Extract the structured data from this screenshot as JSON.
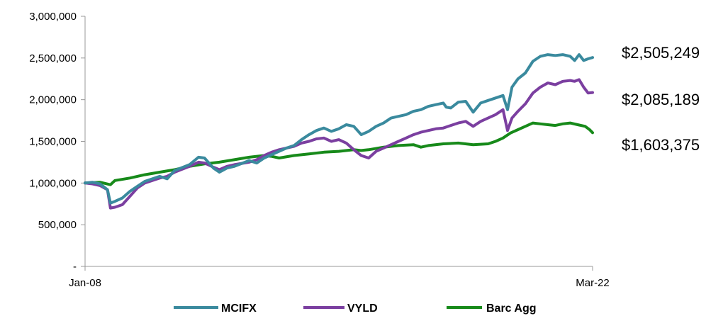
{
  "chart_data": {
    "type": "line",
    "x_start_label": "Jan-08",
    "x_end_label": "Mar-22",
    "x_tick_labels": [
      "Jan-08",
      "Mar-22"
    ],
    "y_ticks": [
      0,
      500000,
      1000000,
      1500000,
      2000000,
      2500000,
      3000000
    ],
    "y_tick_labels": [
      "-",
      "500,000",
      "1,000,000",
      "1,500,000",
      "2,000,000",
      "2,500,000",
      "3,000,000"
    ],
    "ylim": [
      0,
      3000000
    ],
    "grid": false,
    "legend_position": "bottom",
    "series": [
      {
        "name": "MCIFX",
        "color": "#3a8a9e",
        "end_label": "$2,505,249",
        "points": [
          [
            2008.0,
            1000000
          ],
          [
            2008.25,
            1010000
          ],
          [
            2008.5,
            990000
          ],
          [
            2008.75,
            920000
          ],
          [
            2008.85,
            760000
          ],
          [
            2009.0,
            780000
          ],
          [
            2009.25,
            820000
          ],
          [
            2009.5,
            900000
          ],
          [
            2009.75,
            960000
          ],
          [
            2010.0,
            1020000
          ],
          [
            2010.5,
            1080000
          ],
          [
            2010.75,
            1050000
          ],
          [
            2011.0,
            1150000
          ],
          [
            2011.5,
            1220000
          ],
          [
            2011.8,
            1310000
          ],
          [
            2012.0,
            1300000
          ],
          [
            2012.3,
            1180000
          ],
          [
            2012.5,
            1130000
          ],
          [
            2012.75,
            1180000
          ],
          [
            2013.0,
            1200000
          ],
          [
            2013.5,
            1270000
          ],
          [
            2013.75,
            1240000
          ],
          [
            2014.0,
            1300000
          ],
          [
            2014.25,
            1340000
          ],
          [
            2014.5,
            1380000
          ],
          [
            2014.75,
            1420000
          ],
          [
            2015.0,
            1450000
          ],
          [
            2015.25,
            1520000
          ],
          [
            2015.5,
            1580000
          ],
          [
            2015.75,
            1630000
          ],
          [
            2016.0,
            1660000
          ],
          [
            2016.25,
            1620000
          ],
          [
            2016.5,
            1650000
          ],
          [
            2016.75,
            1700000
          ],
          [
            2017.0,
            1680000
          ],
          [
            2017.25,
            1580000
          ],
          [
            2017.5,
            1620000
          ],
          [
            2017.75,
            1680000
          ],
          [
            2018.0,
            1720000
          ],
          [
            2018.25,
            1780000
          ],
          [
            2018.5,
            1800000
          ],
          [
            2018.75,
            1820000
          ],
          [
            2019.0,
            1860000
          ],
          [
            2019.25,
            1880000
          ],
          [
            2019.5,
            1920000
          ],
          [
            2019.75,
            1940000
          ],
          [
            2020.0,
            1960000
          ],
          [
            2020.1,
            1910000
          ],
          [
            2020.25,
            1900000
          ],
          [
            2020.5,
            1970000
          ],
          [
            2020.75,
            1980000
          ],
          [
            2021.0,
            1850000
          ],
          [
            2021.25,
            1960000
          ],
          [
            2021.5,
            1990000
          ],
          [
            2021.75,
            2020000
          ],
          [
            2022.0,
            2050000
          ],
          [
            2022.15,
            1880000
          ],
          [
            2022.3,
            2150000
          ],
          [
            2022.5,
            2250000
          ],
          [
            2022.75,
            2320000
          ],
          [
            2023.0,
            2460000
          ],
          [
            2023.25,
            2520000
          ],
          [
            2023.5,
            2540000
          ],
          [
            2023.75,
            2530000
          ],
          [
            2024.0,
            2540000
          ],
          [
            2024.25,
            2520000
          ],
          [
            2024.4,
            2470000
          ],
          [
            2024.55,
            2540000
          ],
          [
            2024.7,
            2470000
          ],
          [
            2024.85,
            2490000
          ],
          [
            2025.0,
            2505249
          ]
        ]
      },
      {
        "name": "VYLD",
        "color": "#7b3fa0",
        "end_label": "$2,085,189",
        "points": [
          [
            2008.0,
            1000000
          ],
          [
            2008.25,
            990000
          ],
          [
            2008.5,
            970000
          ],
          [
            2008.75,
            920000
          ],
          [
            2008.85,
            700000
          ],
          [
            2009.0,
            710000
          ],
          [
            2009.25,
            740000
          ],
          [
            2009.5,
            840000
          ],
          [
            2009.75,
            940000
          ],
          [
            2010.0,
            1000000
          ],
          [
            2010.5,
            1060000
          ],
          [
            2010.75,
            1080000
          ],
          [
            2011.0,
            1130000
          ],
          [
            2011.5,
            1200000
          ],
          [
            2011.8,
            1250000
          ],
          [
            2012.0,
            1240000
          ],
          [
            2012.3,
            1190000
          ],
          [
            2012.5,
            1160000
          ],
          [
            2012.75,
            1200000
          ],
          [
            2013.0,
            1220000
          ],
          [
            2013.5,
            1250000
          ],
          [
            2013.75,
            1280000
          ],
          [
            2014.0,
            1330000
          ],
          [
            2014.25,
            1370000
          ],
          [
            2014.5,
            1400000
          ],
          [
            2014.75,
            1420000
          ],
          [
            2015.0,
            1440000
          ],
          [
            2015.25,
            1480000
          ],
          [
            2015.5,
            1500000
          ],
          [
            2015.75,
            1530000
          ],
          [
            2016.0,
            1540000
          ],
          [
            2016.25,
            1500000
          ],
          [
            2016.5,
            1520000
          ],
          [
            2016.75,
            1480000
          ],
          [
            2017.0,
            1400000
          ],
          [
            2017.25,
            1330000
          ],
          [
            2017.5,
            1300000
          ],
          [
            2017.75,
            1380000
          ],
          [
            2018.0,
            1420000
          ],
          [
            2018.25,
            1460000
          ],
          [
            2018.5,
            1500000
          ],
          [
            2018.75,
            1540000
          ],
          [
            2019.0,
            1580000
          ],
          [
            2019.25,
            1610000
          ],
          [
            2019.5,
            1630000
          ],
          [
            2019.75,
            1650000
          ],
          [
            2020.0,
            1660000
          ],
          [
            2020.25,
            1690000
          ],
          [
            2020.5,
            1720000
          ],
          [
            2020.75,
            1740000
          ],
          [
            2021.0,
            1680000
          ],
          [
            2021.25,
            1740000
          ],
          [
            2021.5,
            1780000
          ],
          [
            2021.75,
            1820000
          ],
          [
            2022.0,
            1880000
          ],
          [
            2022.15,
            1630000
          ],
          [
            2022.3,
            1780000
          ],
          [
            2022.5,
            1860000
          ],
          [
            2022.75,
            1950000
          ],
          [
            2023.0,
            2080000
          ],
          [
            2023.25,
            2150000
          ],
          [
            2023.5,
            2200000
          ],
          [
            2023.75,
            2180000
          ],
          [
            2024.0,
            2220000
          ],
          [
            2024.25,
            2230000
          ],
          [
            2024.4,
            2220000
          ],
          [
            2024.55,
            2240000
          ],
          [
            2024.7,
            2150000
          ],
          [
            2024.85,
            2080000
          ],
          [
            2025.0,
            2085189
          ]
        ]
      },
      {
        "name": "Barc Agg",
        "color": "#178a1a",
        "end_label": "$1,603,375",
        "points": [
          [
            2008.0,
            1000000
          ],
          [
            2008.5,
            1010000
          ],
          [
            2008.85,
            980000
          ],
          [
            2009.0,
            1030000
          ],
          [
            2009.5,
            1060000
          ],
          [
            2010.0,
            1100000
          ],
          [
            2010.5,
            1130000
          ],
          [
            2011.0,
            1160000
          ],
          [
            2011.5,
            1200000
          ],
          [
            2012.0,
            1230000
          ],
          [
            2012.5,
            1250000
          ],
          [
            2013.0,
            1280000
          ],
          [
            2013.5,
            1310000
          ],
          [
            2014.0,
            1330000
          ],
          [
            2014.25,
            1320000
          ],
          [
            2014.5,
            1300000
          ],
          [
            2015.0,
            1330000
          ],
          [
            2015.5,
            1350000
          ],
          [
            2016.0,
            1370000
          ],
          [
            2016.5,
            1380000
          ],
          [
            2017.0,
            1400000
          ],
          [
            2017.25,
            1390000
          ],
          [
            2017.5,
            1400000
          ],
          [
            2018.0,
            1430000
          ],
          [
            2018.5,
            1450000
          ],
          [
            2019.0,
            1460000
          ],
          [
            2019.25,
            1430000
          ],
          [
            2019.5,
            1450000
          ],
          [
            2020.0,
            1470000
          ],
          [
            2020.5,
            1480000
          ],
          [
            2021.0,
            1460000
          ],
          [
            2021.5,
            1470000
          ],
          [
            2021.75,
            1500000
          ],
          [
            2022.0,
            1540000
          ],
          [
            2022.25,
            1600000
          ],
          [
            2022.5,
            1640000
          ],
          [
            2022.75,
            1680000
          ],
          [
            2023.0,
            1720000
          ],
          [
            2023.25,
            1710000
          ],
          [
            2023.5,
            1700000
          ],
          [
            2023.75,
            1690000
          ],
          [
            2024.0,
            1710000
          ],
          [
            2024.25,
            1720000
          ],
          [
            2024.5,
            1700000
          ],
          [
            2024.75,
            1680000
          ],
          [
            2024.9,
            1640000
          ],
          [
            2025.0,
            1603375
          ]
        ]
      }
    ]
  }
}
